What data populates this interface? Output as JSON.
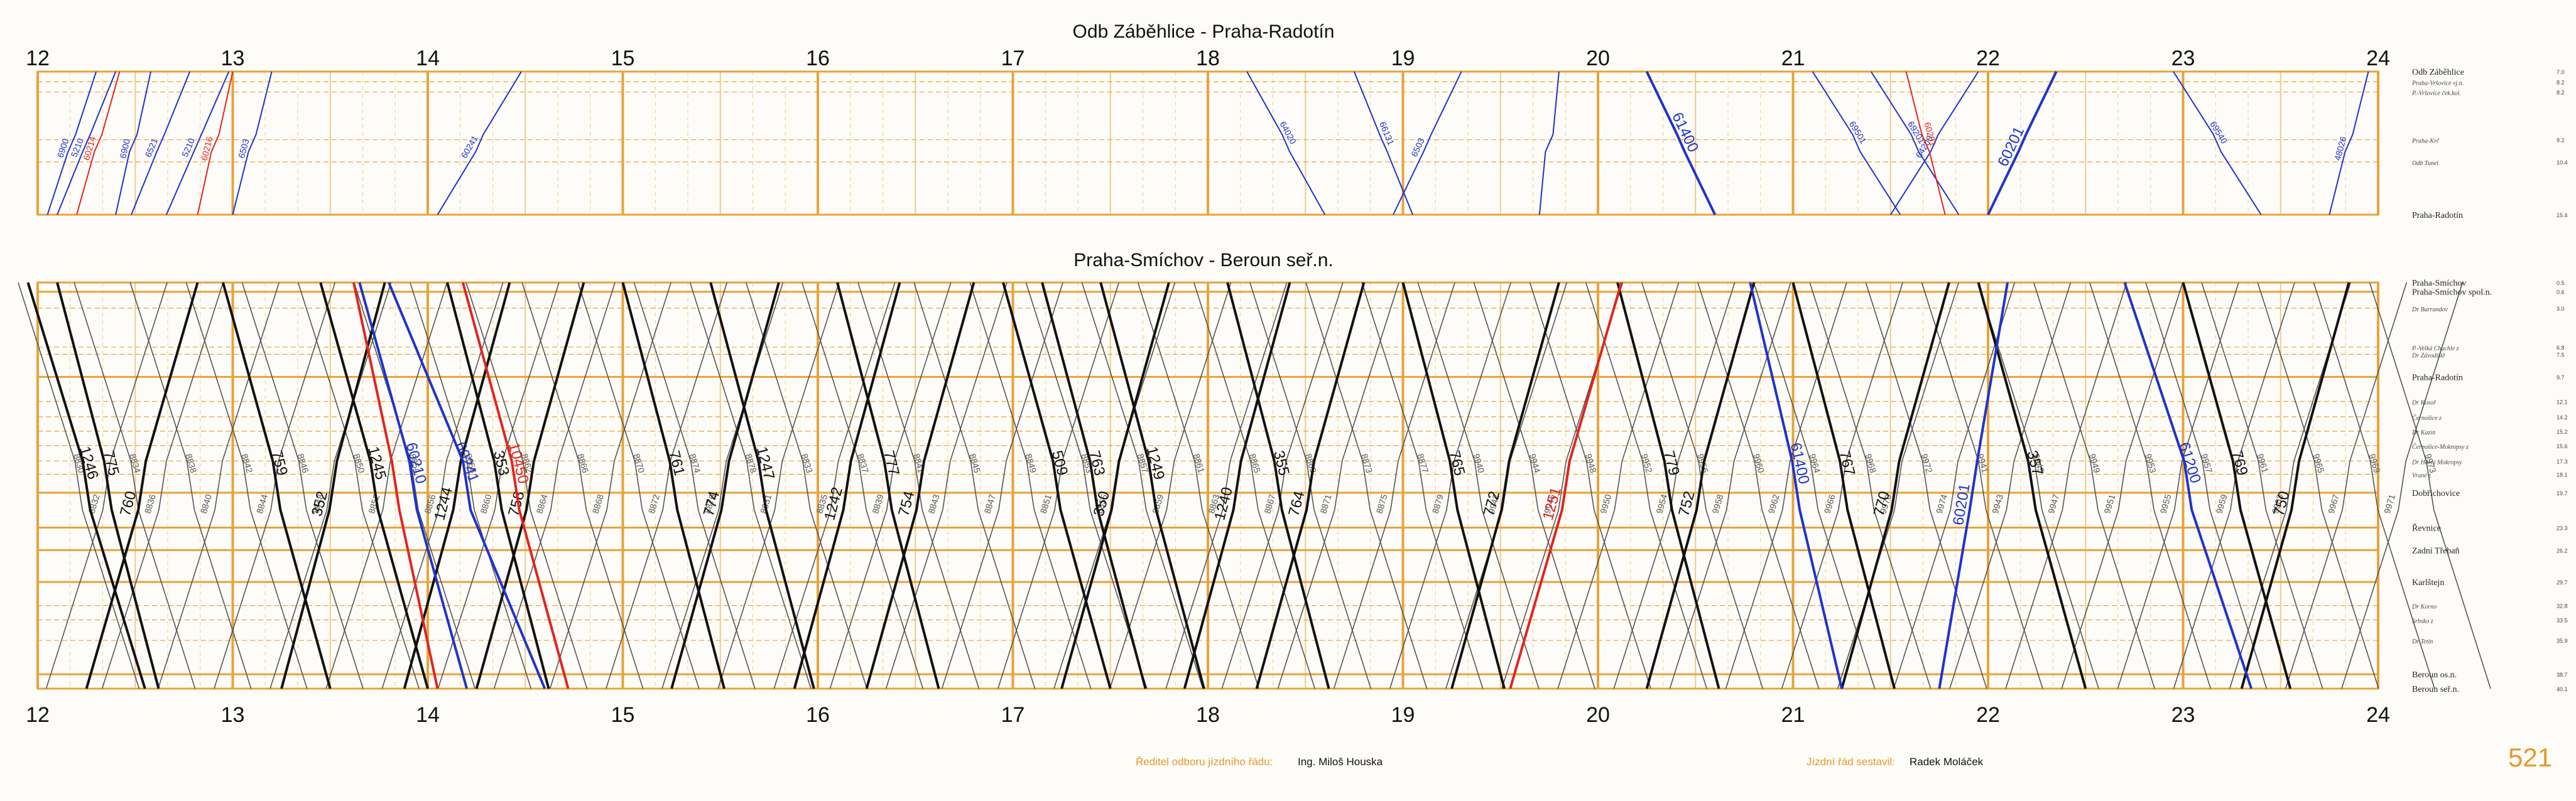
{
  "colors": {
    "grid": "#e8a33a",
    "grid_light": "#f2c98a",
    "train_black": "#111111",
    "train_blue": "#1f33cc",
    "train_red": "#e0251f",
    "train_gray": "#555555",
    "accent": "#e39a2a"
  },
  "hours": [
    "12",
    "13",
    "14",
    "15",
    "16",
    "17",
    "18",
    "19",
    "20",
    "21",
    "22",
    "23",
    "24"
  ],
  "hour_values": [
    12,
    13,
    14,
    15,
    16,
    17,
    18,
    19,
    20,
    21,
    22,
    23,
    24
  ],
  "time_range": [
    12,
    24
  ],
  "panels": [
    {
      "id": "top",
      "title": "Odb Záběhlice - Praha-Radotín",
      "km_range": [
        7.0,
        15.4
      ],
      "stations": [
        {
          "name": "Odb Záběhlice",
          "km": "7.0",
          "kmv": 7.0,
          "major": true
        },
        {
          "name": "Praha-Vršovice vj.n.",
          "km": "8.2",
          "kmv": 7.6,
          "major": false
        },
        {
          "name": "P.-Vršovice ček.kol.",
          "km": "8.2",
          "kmv": 8.2,
          "major": false
        },
        {
          "name": "Praha-Krč",
          "km": "9.2",
          "kmv": 11.0,
          "major": false
        },
        {
          "name": "Odb Tunel",
          "km": "10.4",
          "kmv": 12.3,
          "major": false
        },
        {
          "name": "Praha-Radotín",
          "km": "15.4",
          "kmv": 15.4,
          "major": true
        }
      ],
      "trains": [
        {
          "num": "6900",
          "color": "blue",
          "dir": "up",
          "t0": 12.05,
          "t1": 12.3
        },
        {
          "num": "5210",
          "color": "blue",
          "dir": "up",
          "t0": 12.1,
          "t1": 12.4
        },
        {
          "num": "60214",
          "color": "red",
          "dir": "up",
          "t0": 12.2,
          "t1": 12.42
        },
        {
          "name_visible": false,
          "num": "6900",
          "color": "blue",
          "dir": "up",
          "t0": 12.4,
          "t1": 12.58
        },
        {
          "num": "6521",
          "color": "blue",
          "dir": "up",
          "t0": 12.48,
          "t1": 12.78
        },
        {
          "num": "5210",
          "color": "blue",
          "dir": "up",
          "t0": 12.66,
          "t1": 12.98
        },
        {
          "num": "60216",
          "color": "red",
          "dir": "up",
          "t0": 12.82,
          "t1": 13.0
        },
        {
          "num": "6503",
          "color": "blue",
          "dir": "up",
          "t0": 13.0,
          "t1": 13.2
        },
        {
          "num": "60241",
          "color": "blue",
          "dir": "up",
          "t0": 14.05,
          "t1": 14.48
        },
        {
          "num": "64020",
          "color": "blue",
          "dir": "down",
          "t0": 18.2,
          "t1": 18.6
        },
        {
          "num": "66131",
          "color": "blue",
          "dir": "down",
          "t0": 18.75,
          "t1": 19.05
        },
        {
          "num": "6503",
          "color": "blue",
          "dir": "up",
          "t0": 18.95,
          "t1": 19.3
        },
        {
          "num": "",
          "color": "blue",
          "dir": "up",
          "t0": 19.7,
          "t1": 19.8
        },
        {
          "num": "61400",
          "color": "blue",
          "dir": "down",
          "t0": 20.25,
          "t1": 20.6,
          "bold": true
        },
        {
          "num": "69501",
          "color": "blue",
          "dir": "down",
          "t0": 21.1,
          "t1": 21.55
        },
        {
          "num": "69201",
          "color": "blue",
          "dir": "down",
          "t0": 21.4,
          "t1": 21.85
        },
        {
          "num": "64200",
          "color": "blue",
          "dir": "up",
          "t0": 21.5,
          "t1": 21.95
        },
        {
          "num": "60201",
          "color": "red",
          "dir": "down",
          "t0": 21.58,
          "t1": 21.78
        },
        {
          "num": "60201",
          "color": "blue",
          "dir": "up",
          "t0": 22.0,
          "t1": 22.35,
          "bold": true
        },
        {
          "num": "69540",
          "color": "blue",
          "dir": "down",
          "t0": 22.95,
          "t1": 23.4
        },
        {
          "num": "48026",
          "color": "blue",
          "dir": "up",
          "t0": 23.75,
          "t1": 23.95
        }
      ]
    },
    {
      "id": "bottom",
      "title": "Praha-Smíchov - Beroun seř.n.",
      "km_range": [
        0.5,
        40.1
      ],
      "stations": [
        {
          "name": "Praha-Smíchov",
          "km": "0.5",
          "kmv": 0.5,
          "major": true
        },
        {
          "name": "Praha-Smíchov spol.n.",
          "km": "0.6",
          "kmv": 1.4,
          "major": true
        },
        {
          "name": "Dr Barrandov",
          "km": "3.0",
          "kmv": 3.0,
          "major": false
        },
        {
          "name": "P.-Velká Chuchle z",
          "km": "6.8",
          "kmv": 6.8,
          "major": false
        },
        {
          "name": "Dr Závodiště",
          "km": "7.5",
          "kmv": 7.5,
          "major": false
        },
        {
          "name": "Praha-Radotín",
          "km": "9.7",
          "kmv": 9.7,
          "major": true
        },
        {
          "name": "Dr Kosoř",
          "km": "12.1",
          "kmv": 12.1,
          "major": false
        },
        {
          "name": "Černošice z",
          "km": "14.2",
          "kmv": 13.6,
          "major": false
        },
        {
          "name": "Dr Kazín",
          "km": "15.2",
          "kmv": 15.0,
          "major": false
        },
        {
          "name": "Černošice-Mokropsy z",
          "km": "15.6",
          "kmv": 16.4,
          "major": false
        },
        {
          "name": "Dr Horní Mokropsy",
          "km": "17.3",
          "kmv": 17.9,
          "major": false
        },
        {
          "name": "Vrané z",
          "km": "18.1",
          "kmv": 19.2,
          "major": false
        },
        {
          "name": "Dobřichovice",
          "km": "19.7",
          "kmv": 21.0,
          "major": true
        },
        {
          "name": "Řevnice",
          "km": "23.3",
          "kmv": 24.4,
          "major": true
        },
        {
          "name": "Zadní Třebaň",
          "km": "26.2",
          "kmv": 26.6,
          "major": true
        },
        {
          "name": "Karlštejn",
          "km": "29.7",
          "kmv": 29.7,
          "major": true
        },
        {
          "name": "Dr Korno",
          "km": "32.8",
          "kmv": 32.0,
          "major": false
        },
        {
          "name": "Srbsko z",
          "km": "33.5",
          "kmv": 33.4,
          "major": false
        },
        {
          "name": "Dr Tetín",
          "km": "35.9",
          "kmv": 35.4,
          "major": false
        },
        {
          "name": "Beroun os.n.",
          "km": "38.7",
          "kmv": 38.7,
          "major": true
        },
        {
          "name": "Beroun seř.n.",
          "km": "40.1",
          "kmv": 40.1,
          "major": true
        }
      ],
      "black_trains": [
        {
          "num": "1246",
          "dir": "down",
          "t0": 11.95,
          "t1": 12.55
        },
        {
          "num": "775",
          "dir": "down",
          "t0": 12.1,
          "t1": 12.62
        },
        {
          "num": "760",
          "dir": "up",
          "t0": 12.25,
          "t1": 12.82
        },
        {
          "num": "759",
          "dir": "down",
          "t0": 12.95,
          "t1": 13.5
        },
        {
          "num": "352",
          "dir": "up",
          "t0": 13.25,
          "t1": 13.78
        },
        {
          "num": "1245",
          "dir": "down",
          "t0": 13.45,
          "t1": 14.0
        },
        {
          "num": "1244",
          "dir": "up",
          "t0": 13.88,
          "t1": 14.42
        },
        {
          "num": "353",
          "dir": "down",
          "t0": 14.1,
          "t1": 14.62
        },
        {
          "num": "758",
          "dir": "up",
          "t0": 14.25,
          "t1": 14.8
        },
        {
          "num": "761",
          "dir": "down",
          "t0": 15.0,
          "t1": 15.52
        },
        {
          "num": "774",
          "dir": "up",
          "t0": 15.25,
          "t1": 15.8
        },
        {
          "num": "1247",
          "dir": "down",
          "t0": 15.45,
          "t1": 15.98
        },
        {
          "num": "1242",
          "dir": "up",
          "t0": 15.88,
          "t1": 16.42
        },
        {
          "num": "777",
          "dir": "down",
          "t0": 16.1,
          "t1": 16.62
        },
        {
          "num": "754",
          "dir": "up",
          "t0": 16.25,
          "t1": 16.8
        },
        {
          "num": "509",
          "dir": "down",
          "t0": 16.95,
          "t1": 17.5
        },
        {
          "num": "763",
          "dir": "down",
          "t0": 17.15,
          "t1": 17.68
        },
        {
          "num": "350",
          "dir": "up",
          "t0": 17.25,
          "t1": 17.8
        },
        {
          "num": "1249",
          "dir": "down",
          "t0": 17.45,
          "t1": 17.98
        },
        {
          "num": "1240",
          "dir": "up",
          "t0": 17.88,
          "t1": 18.42
        },
        {
          "num": "355",
          "dir": "down",
          "t0": 18.1,
          "t1": 18.62
        },
        {
          "num": "764",
          "dir": "up",
          "t0": 18.25,
          "t1": 18.8
        },
        {
          "num": "765",
          "dir": "down",
          "t0": 19.0,
          "t1": 19.52
        },
        {
          "num": "772",
          "dir": "up",
          "t0": 19.25,
          "t1": 19.8
        },
        {
          "num": "779",
          "dir": "down",
          "t0": 20.1,
          "t1": 20.62
        },
        {
          "num": "752",
          "dir": "up",
          "t0": 20.25,
          "t1": 20.8
        },
        {
          "num": "767",
          "dir": "down",
          "t0": 21.0,
          "t1": 21.52
        },
        {
          "num": "770",
          "dir": "up",
          "t0": 21.25,
          "t1": 21.8
        },
        {
          "num": "357",
          "dir": "down",
          "t0": 21.95,
          "t1": 22.5
        },
        {
          "num": "769",
          "dir": "down",
          "t0": 23.0,
          "t1": 23.55
        },
        {
          "num": "750",
          "dir": "up",
          "t0": 23.3,
          "t1": 23.85
        }
      ],
      "highlight_trains": [
        {
          "num": "60210",
          "color": "blue",
          "dir": "down",
          "t0": 13.65,
          "t1": 14.2
        },
        {
          "num": "60241",
          "color": "blue",
          "dir": "down",
          "t0": 13.8,
          "t1": 14.6
        },
        {
          "num": "10450",
          "color": "red",
          "dir": "down",
          "t0": 14.18,
          "t1": 14.72
        },
        {
          "num": "",
          "color": "red",
          "dir": "down",
          "t0": 13.62,
          "t1": 14.05
        },
        {
          "num": "1251",
          "color": "red",
          "dir": "up",
          "t0": 19.55,
          "t1": 20.12
        },
        {
          "num": "61400",
          "color": "blue",
          "dir": "down",
          "t0": 20.78,
          "t1": 21.25
        },
        {
          "num": "60201",
          "color": "blue",
          "dir": "up",
          "t0": 21.75,
          "t1": 22.1
        },
        {
          "num": "61200",
          "color": "blue",
          "dir": "down",
          "t0": 22.7,
          "t1": 23.35
        }
      ],
      "gray_train_labels": [
        "8830",
        "8832",
        "8834",
        "8836",
        "8838",
        "8840",
        "8842",
        "8844",
        "8846",
        "8848",
        "8850",
        "8852",
        "8854",
        "8856",
        "8858",
        "8860",
        "8862",
        "8864",
        "8866",
        "8868",
        "8870",
        "8872",
        "8874",
        "8876",
        "8878",
        "8831",
        "8833",
        "8835",
        "8837",
        "8839",
        "8841",
        "8843",
        "8845",
        "8847",
        "8849",
        "8851",
        "8853",
        "8855",
        "8857",
        "8859",
        "8861",
        "8863",
        "8865",
        "8867",
        "8869",
        "8871",
        "8873",
        "8875",
        "8877",
        "8879",
        "9940",
        "9942",
        "9944",
        "9946",
        "9948",
        "9950",
        "9952",
        "9954",
        "9956",
        "9958",
        "9960",
        "9962",
        "9964",
        "9966",
        "9968",
        "9970",
        "9972",
        "9974",
        "9941",
        "9943",
        "9945",
        "9947",
        "9949",
        "9951",
        "9953",
        "9955",
        "9957",
        "9959",
        "9961",
        "9963",
        "9965",
        "9967",
        "9969",
        "9971",
        "9973"
      ]
    }
  ],
  "footer": {
    "left_label": "Ředitel odboru jízdního řádu:",
    "left_value": "Ing. Miloš Houska",
    "right_label": "Jízdní řád sestavil:",
    "right_value": "Radek Moláček",
    "page_number": "521"
  }
}
